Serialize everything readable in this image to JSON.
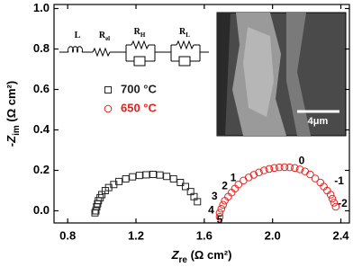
{
  "chart_data": {
    "type": "scatter",
    "xlabel": {
      "main": "Z",
      "sub": "re",
      "unit": " (Ω cm²)"
    },
    "ylabel": {
      "main": "-Z",
      "sub": "im",
      "unit": " (Ω cm²)"
    },
    "xlim": [
      0.72,
      2.45
    ],
    "xticks": [
      0.8,
      1.2,
      1.6,
      {
        "value": 2.0,
        "label": "2.0"
      },
      2.4
    ],
    "ylim": [
      -0.06,
      1.02
    ],
    "yticks": [
      {
        "value": 0,
        "label": "0.0"
      },
      0.2,
      0.4,
      0.6,
      0.8,
      {
        "value": 1,
        "label": "1.0"
      }
    ],
    "series": [
      {
        "name": "700 °C",
        "color": "#222222",
        "marker": "square",
        "x": [
          0.96,
          0.965,
          0.97,
          0.975,
          0.98,
          0.99,
          1.0,
          1.02,
          1.04,
          1.07,
          1.1,
          1.14,
          1.18,
          1.22,
          1.26,
          1.3,
          1.34,
          1.38,
          1.42,
          1.46,
          1.49,
          1.52,
          1.54,
          1.56
        ],
        "values": [
          -0.01,
          0.0,
          0.02,
          0.035,
          0.05,
          0.065,
          0.08,
          0.1,
          0.115,
          0.13,
          0.145,
          0.158,
          0.168,
          0.175,
          0.178,
          0.18,
          0.177,
          0.17,
          0.158,
          0.14,
          0.12,
          0.095,
          0.07,
          0.045
        ]
      },
      {
        "name": "650 °C",
        "color": "#e8201c",
        "marker": "circle",
        "x": [
          1.69,
          1.69,
          1.7,
          1.71,
          1.72,
          1.74,
          1.76,
          1.78,
          1.8,
          1.83,
          1.86,
          1.89,
          1.92,
          1.95,
          1.98,
          2.01,
          2.04,
          2.07,
          2.1,
          2.13,
          2.16,
          2.19,
          2.22,
          2.25,
          2.28,
          2.3,
          2.32,
          2.34,
          2.35,
          2.36,
          2.37
        ],
        "values": [
          -0.03,
          -0.01,
          0.01,
          0.03,
          0.05,
          0.07,
          0.09,
          0.11,
          0.13,
          0.15,
          0.165,
          0.178,
          0.19,
          0.2,
          0.207,
          0.212,
          0.215,
          0.216,
          0.215,
          0.212,
          0.205,
          0.195,
          0.18,
          0.16,
          0.14,
          0.12,
          0.1,
          0.08,
          0.06,
          0.04,
          0.02
        ]
      }
    ],
    "annotations": [
      {
        "text": "0",
        "x": 2.17,
        "y": 0.245
      },
      {
        "text": "-1",
        "x": 2.39,
        "y": 0.145
      },
      {
        "text": "-2",
        "x": 2.41,
        "y": 0.035
      },
      {
        "text": "1",
        "x": 1.77,
        "y": 0.16
      },
      {
        "text": "2",
        "x": 1.72,
        "y": 0.12
      },
      {
        "text": "3",
        "x": 1.66,
        "y": 0.07
      },
      {
        "text": "4",
        "x": 1.64,
        "y": 0.0
      },
      {
        "text": "5",
        "x": 1.69,
        "y": -0.045
      }
    ],
    "circuit": {
      "labels": [
        {
          "main": "L"
        },
        {
          "main": "R",
          "sub": "el"
        },
        {
          "main": "R",
          "sub": "H"
        },
        {
          "main": "R",
          "sub": "L"
        }
      ]
    },
    "inset": {
      "scale_label": "4μm"
    }
  }
}
